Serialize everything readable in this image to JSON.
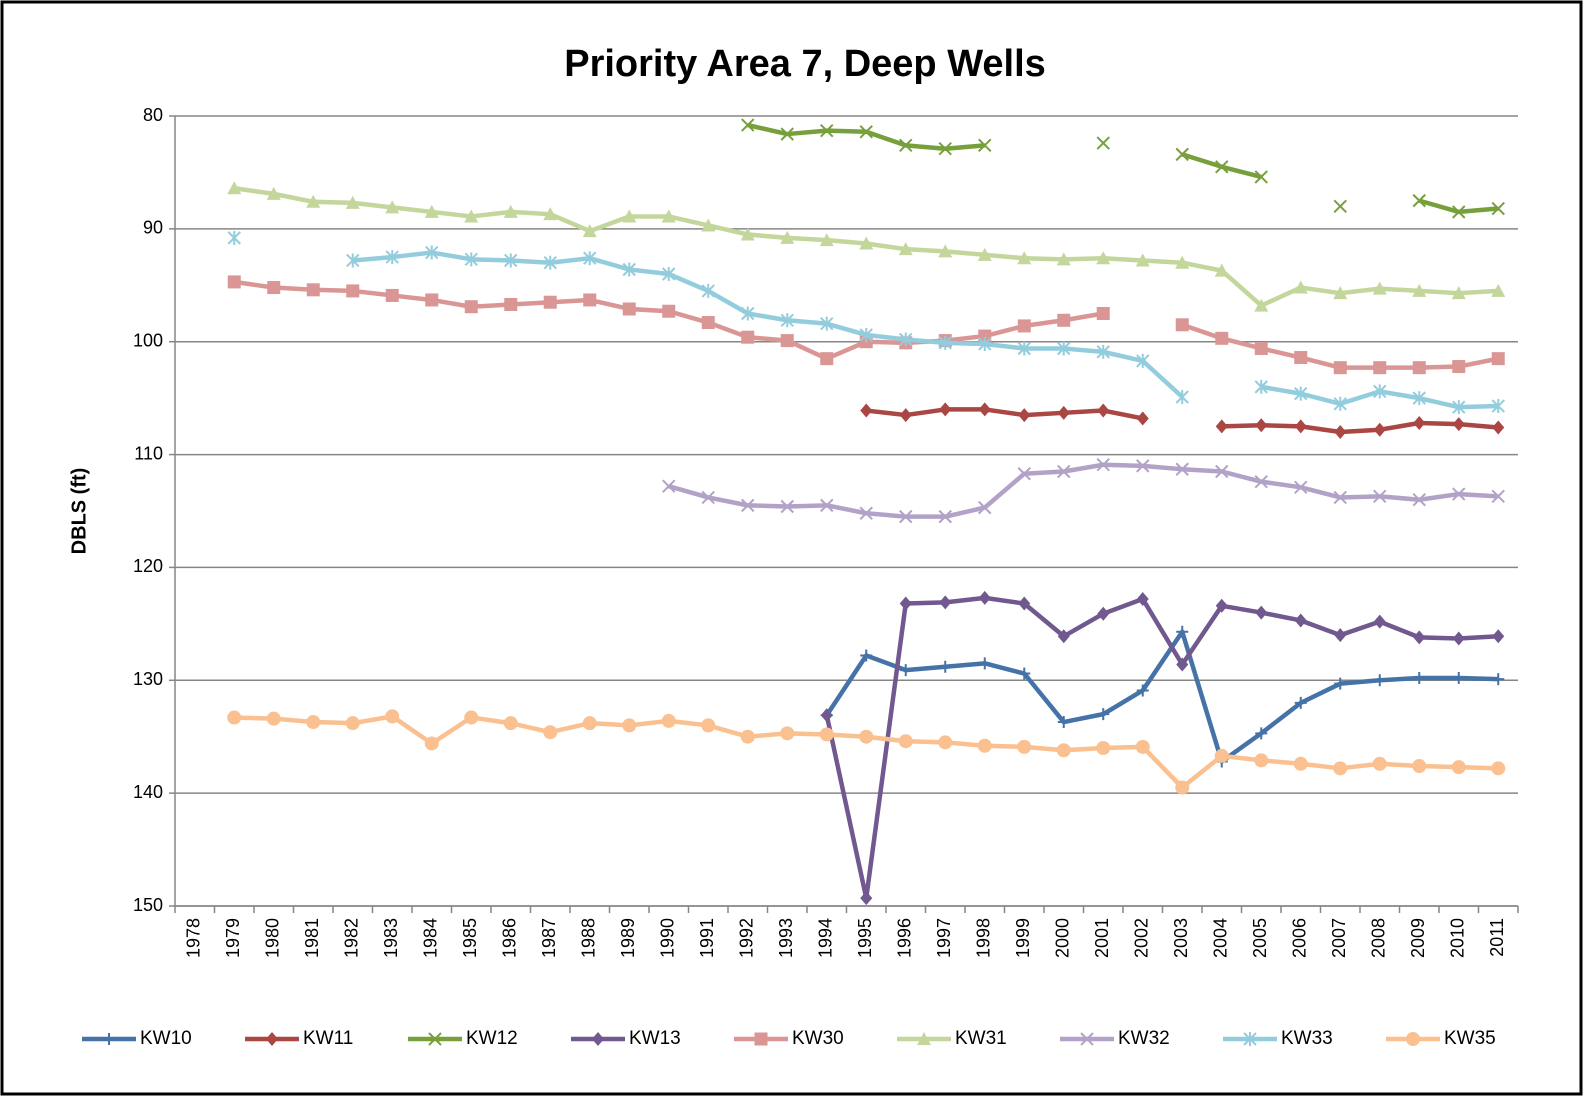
{
  "chart_data": {
    "type": "line",
    "title": "Priority Area 7, Deep Wells",
    "y_label": "DBLS (ft)",
    "categories": [
      "1978",
      "1979",
      "1980",
      "1981",
      "1982",
      "1983",
      "1984",
      "1985",
      "1986",
      "1987",
      "1988",
      "1989",
      "1990",
      "1991",
      "1992",
      "1993",
      "1994",
      "1995",
      "1996",
      "1997",
      "1998",
      "1999",
      "2000",
      "2001",
      "2002",
      "2003",
      "2004",
      "2005",
      "2006",
      "2007",
      "2008",
      "2009",
      "2010",
      "2011"
    ],
    "ylim": [
      80,
      150
    ],
    "y_reversed": true,
    "yticks": [
      80,
      90,
      100,
      110,
      120,
      130,
      140,
      150
    ],
    "grid": true,
    "legend": "bottom",
    "series": [
      {
        "name": "KW10",
        "color": "#4572a7",
        "marker": "plus",
        "values": [
          null,
          null,
          null,
          null,
          null,
          null,
          null,
          null,
          null,
          null,
          null,
          null,
          null,
          null,
          null,
          null,
          133.1,
          127.8,
          129.1,
          128.8,
          128.5,
          129.4,
          133.7,
          133.0,
          130.9,
          125.7,
          137.2,
          134.7,
          132.0,
          130.3,
          130.0,
          129.8,
          129.8,
          129.9
        ]
      },
      {
        "name": "KW11",
        "color": "#aa4643",
        "marker": "diamond",
        "values": [
          null,
          null,
          null,
          null,
          null,
          null,
          null,
          null,
          null,
          null,
          null,
          null,
          null,
          null,
          null,
          null,
          null,
          106.1,
          106.5,
          106.0,
          106.0,
          106.5,
          106.3,
          106.1,
          106.8,
          null,
          107.5,
          107.4,
          107.5,
          108.0,
          107.8,
          107.2,
          107.3,
          107.6
        ]
      },
      {
        "name": "KW12",
        "color": "#77a03c",
        "marker": "x",
        "values": [
          null,
          null,
          null,
          null,
          null,
          null,
          null,
          null,
          null,
          null,
          null,
          null,
          null,
          null,
          80.8,
          81.6,
          81.3,
          81.4,
          82.6,
          82.9,
          82.6,
          null,
          null,
          82.4,
          null,
          83.4,
          84.5,
          85.4,
          null,
          88.0,
          null,
          87.5,
          88.5,
          88.2
        ]
      },
      {
        "name": "KW13",
        "color": "#71588f",
        "marker": "diamond",
        "values": [
          null,
          null,
          null,
          null,
          null,
          null,
          null,
          null,
          null,
          null,
          null,
          null,
          null,
          null,
          null,
          null,
          133.1,
          149.3,
          123.2,
          123.1,
          122.7,
          123.2,
          126.1,
          124.1,
          122.8,
          128.6,
          123.4,
          124.0,
          124.7,
          126.0,
          124.8,
          126.2,
          126.3,
          126.1
        ]
      },
      {
        "name": "KW30",
        "color": "#d99694",
        "marker": "square",
        "values": [
          null,
          94.7,
          95.2,
          95.4,
          95.5,
          95.9,
          96.3,
          96.9,
          96.7,
          96.5,
          96.3,
          97.1,
          97.3,
          98.3,
          99.6,
          99.9,
          101.5,
          100.0,
          100.1,
          99.9,
          99.5,
          98.6,
          98.1,
          97.5,
          null,
          98.5,
          99.7,
          100.6,
          101.4,
          102.3,
          102.3,
          102.3,
          102.2,
          101.5
        ]
      },
      {
        "name": "KW31",
        "color": "#c3d69b",
        "marker": "triangle",
        "values": [
          null,
          86.4,
          86.9,
          87.6,
          87.7,
          88.1,
          88.5,
          88.9,
          88.5,
          88.7,
          90.2,
          88.9,
          88.9,
          89.7,
          90.5,
          90.8,
          91.0,
          91.3,
          91.8,
          92.0,
          92.3,
          92.6,
          92.7,
          92.6,
          92.8,
          93.0,
          93.7,
          96.8,
          95.2,
          95.7,
          95.3,
          95.5,
          95.7,
          95.5
        ]
      },
      {
        "name": "KW32",
        "color": "#b3a2c7",
        "marker": "x",
        "values": [
          null,
          null,
          null,
          null,
          null,
          null,
          null,
          null,
          null,
          null,
          null,
          null,
          112.8,
          113.8,
          114.5,
          114.6,
          114.5,
          115.2,
          115.5,
          115.5,
          114.7,
          111.7,
          111.5,
          110.9,
          111.0,
          111.3,
          111.5,
          112.4,
          112.9,
          113.8,
          113.7,
          114.0,
          113.5,
          113.7
        ]
      },
      {
        "name": "KW33",
        "color": "#93cddd",
        "marker": "asterisk",
        "values": [
          null,
          90.8,
          null,
          null,
          92.8,
          92.5,
          92.1,
          92.7,
          92.8,
          93.0,
          92.6,
          93.6,
          94.0,
          95.5,
          97.5,
          98.1,
          98.4,
          99.4,
          99.8,
          100.1,
          100.2,
          100.6,
          100.6,
          100.9,
          101.7,
          104.9,
          null,
          104.0,
          104.6,
          105.5,
          104.4,
          105.0,
          105.8,
          105.7
        ]
      },
      {
        "name": "KW35",
        "color": "#fac090",
        "marker": "circle",
        "values": [
          null,
          133.3,
          133.4,
          133.7,
          133.8,
          133.2,
          135.6,
          133.3,
          133.8,
          134.6,
          133.8,
          134.0,
          133.6,
          134.0,
          135.0,
          134.7,
          134.8,
          135.0,
          135.4,
          135.5,
          135.8,
          135.9,
          136.2,
          136.0,
          135.9,
          139.5,
          136.7,
          137.1,
          137.4,
          137.8,
          137.4,
          137.6,
          137.7,
          137.8
        ]
      }
    ]
  }
}
